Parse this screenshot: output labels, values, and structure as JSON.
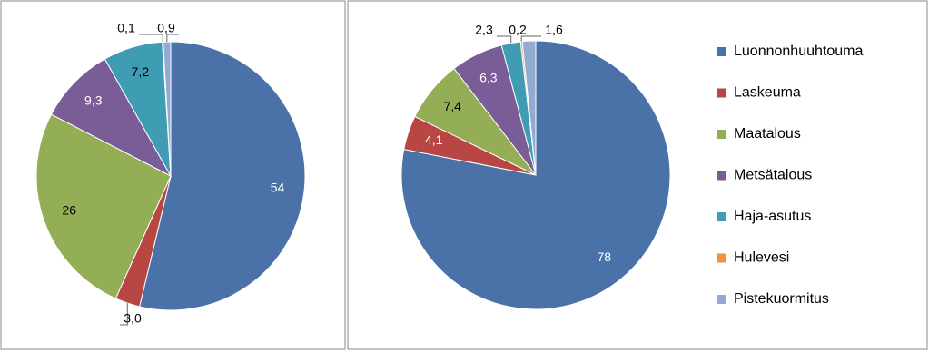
{
  "chart_data": [
    {
      "type": "pie",
      "values": [
        54,
        3.0,
        26,
        9.3,
        7.2,
        0.1,
        0.9
      ],
      "value_labels": [
        "54",
        "3,0",
        "26",
        "9,3",
        "7,2",
        "0,1",
        "0,9"
      ],
      "colors": [
        "#4a72a8",
        "#b84744",
        "#93ae55",
        "#7a5c96",
        "#3f9db3",
        "#f3913c",
        "#93aad3"
      ]
    },
    {
      "type": "pie",
      "categories": [
        "Luonnonhuuhtouma",
        "Laskeuma",
        "Maatalous",
        "Metsätalous",
        "Haja-asutus",
        "Hulevesi",
        "Pistekuormitus"
      ],
      "values": [
        78,
        4.1,
        7.4,
        6.3,
        2.3,
        0.2,
        1.6
      ],
      "value_labels": [
        "78",
        "4,1",
        "7,4",
        "6,3",
        "2,3",
        "0,2",
        "1,6"
      ],
      "colors": [
        "#4a72a8",
        "#b84744",
        "#93ae55",
        "#7a5c96",
        "#3f9db3",
        "#f3913c",
        "#93aad3"
      ],
      "legend": "right"
    }
  ]
}
